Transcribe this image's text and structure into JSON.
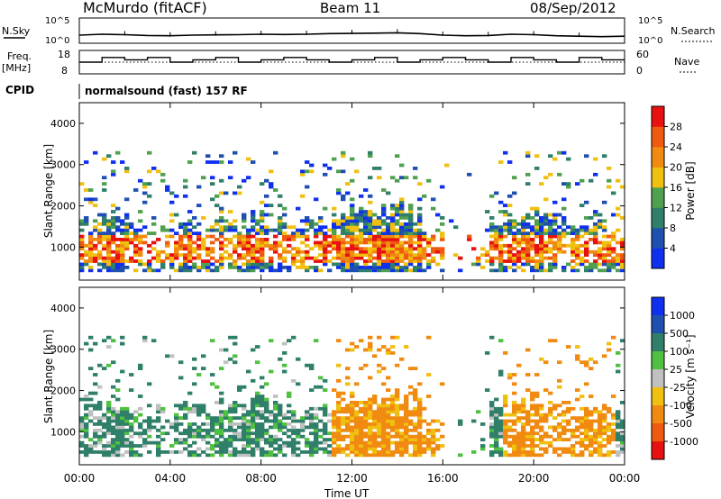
{
  "header": {
    "station": "McMurdo (fitACF)",
    "beam": "Beam 11",
    "date": "08/Sep/2012",
    "program": "normalsound (fast) 157 RF"
  },
  "labels": {
    "nsky": "N.Sky",
    "nsearch": "N.Search",
    "freq": "Freq.",
    "mhz": "[MHz]",
    "nave": "Nave",
    "cpid": "CPID",
    "noise_top_left": "10^5",
    "noise_bot_left": "10^0",
    "noise_top_right": "10^5",
    "noise_bot_right": "10^0",
    "freq_top": "18",
    "freq_bot": "8",
    "nave_top": "60",
    "nave_bot": "0",
    "slant_range_power": "Slant Range [km]",
    "slant_range_velocity": "Slant Range [km]",
    "x_axis": "Time UT",
    "power_cbar": "Power [dB]",
    "velocity_cbar": "Velocity [m s⁻¹]"
  },
  "colors": {
    "power": [
      "#1030f0",
      "#1f50b0",
      "#2f7f6a",
      "#4fa04f",
      "#f0c010",
      "#f08a10",
      "#f05a10",
      "#e81010"
    ],
    "velocity": [
      "#e81010",
      "#f05a10",
      "#f08a10",
      "#f0c010",
      "#c0c0c0",
      "#4fc040",
      "#2f7f6a",
      "#1f50b0",
      "#1030f0"
    ],
    "noise_line": "#000000"
  },
  "chart_data": [
    {
      "type": "line",
      "title": "",
      "panel": "noise",
      "y_scale": "log",
      "ylim": [
        1,
        100000
      ],
      "x_hours": [
        0,
        1,
        2,
        3,
        4,
        5,
        6,
        7,
        8,
        9,
        10,
        11,
        12,
        13,
        14,
        15,
        16,
        17,
        18,
        19,
        20,
        21,
        22,
        23,
        24
      ],
      "series": [
        {
          "name": "N.Sky",
          "values": [
            40,
            60,
            50,
            35,
            30,
            40,
            45,
            50,
            60,
            55,
            60,
            80,
            90,
            100,
            120,
            80,
            40,
            30,
            35,
            60,
            50,
            30,
            25,
            20,
            25
          ]
        }
      ]
    },
    {
      "type": "line",
      "title": "",
      "panel": "frequency / nave",
      "ylim_freq": [
        8,
        18
      ],
      "ylim_nave": [
        0,
        60
      ],
      "x_hours": [
        0,
        1,
        2,
        3,
        4,
        5,
        6,
        7,
        8,
        9,
        10,
        11,
        12,
        13,
        14,
        15,
        16,
        17,
        18,
        19,
        20,
        21,
        22,
        23,
        24
      ],
      "series": [
        {
          "name": "Freq.",
          "values": [
            13,
            15,
            14,
            15,
            13,
            14,
            15,
            13,
            14,
            15,
            14,
            13,
            14,
            15,
            13,
            14,
            15,
            14,
            13,
            15,
            14,
            13,
            15,
            14,
            14
          ]
        }
      ]
    },
    {
      "type": "heatmap",
      "title": "",
      "panel": "power",
      "xlabel": "",
      "ylabel": "Slant Range [km]",
      "x_ticks": [
        "00:00",
        "04:00",
        "08:00",
        "12:00",
        "16:00",
        "20:00",
        "00:00"
      ],
      "y_ticks": [
        1000,
        2000,
        3000,
        4000
      ],
      "ylim": [
        200,
        4500
      ],
      "colorbar_label": "Power [dB]",
      "colorbar_ticks": [
        4,
        8,
        12,
        16,
        20,
        24,
        28
      ],
      "colorbar_range": [
        0,
        32
      ]
    },
    {
      "type": "heatmap",
      "title": "",
      "panel": "velocity",
      "xlabel": "Time UT",
      "ylabel": "Slant Range [km]",
      "x_ticks": [
        "00:00",
        "04:00",
        "08:00",
        "12:00",
        "16:00",
        "20:00",
        "00:00"
      ],
      "y_ticks": [
        1000,
        2000,
        3000,
        4000
      ],
      "ylim": [
        200,
        4500
      ],
      "colorbar_label": "Velocity [m s⁻¹]",
      "colorbar_ticks": [
        1000,
        500,
        100,
        25,
        -25,
        -100,
        -500,
        -1000
      ],
      "colorbar_range": [
        -1000,
        1000
      ]
    }
  ]
}
